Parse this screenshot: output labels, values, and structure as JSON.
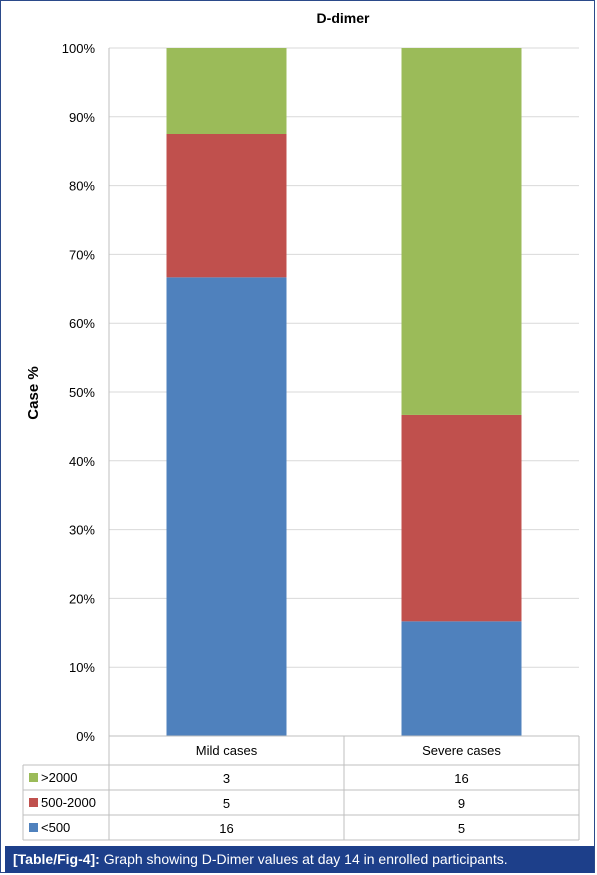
{
  "caption": {
    "label": "[Table/Fig-4]:",
    "text": " Graph showing D-Dimer values at day 14 in enrolled participants."
  },
  "chart_data": {
    "type": "bar",
    "stacked": true,
    "title": "D-dimer",
    "xlabel": "",
    "ylabel": "Case %",
    "ylim": [
      0,
      100
    ],
    "yticks": [
      "0%",
      "10%",
      "20%",
      "30%",
      "40%",
      "50%",
      "60%",
      "70%",
      "80%",
      "90%",
      "100%"
    ],
    "grid": true,
    "categories": [
      "Mild cases",
      "Severe cases"
    ],
    "series": [
      {
        "name": "<500",
        "values": [
          16,
          5
        ],
        "color": "#4f81bd"
      },
      {
        "name": "500-2000",
        "values": [
          5,
          9
        ],
        "color": "#c0504d"
      },
      {
        "name": ">2000",
        "values": [
          3,
          16
        ],
        "color": "#9bbb59"
      }
    ],
    "legend": "data-table-left"
  }
}
